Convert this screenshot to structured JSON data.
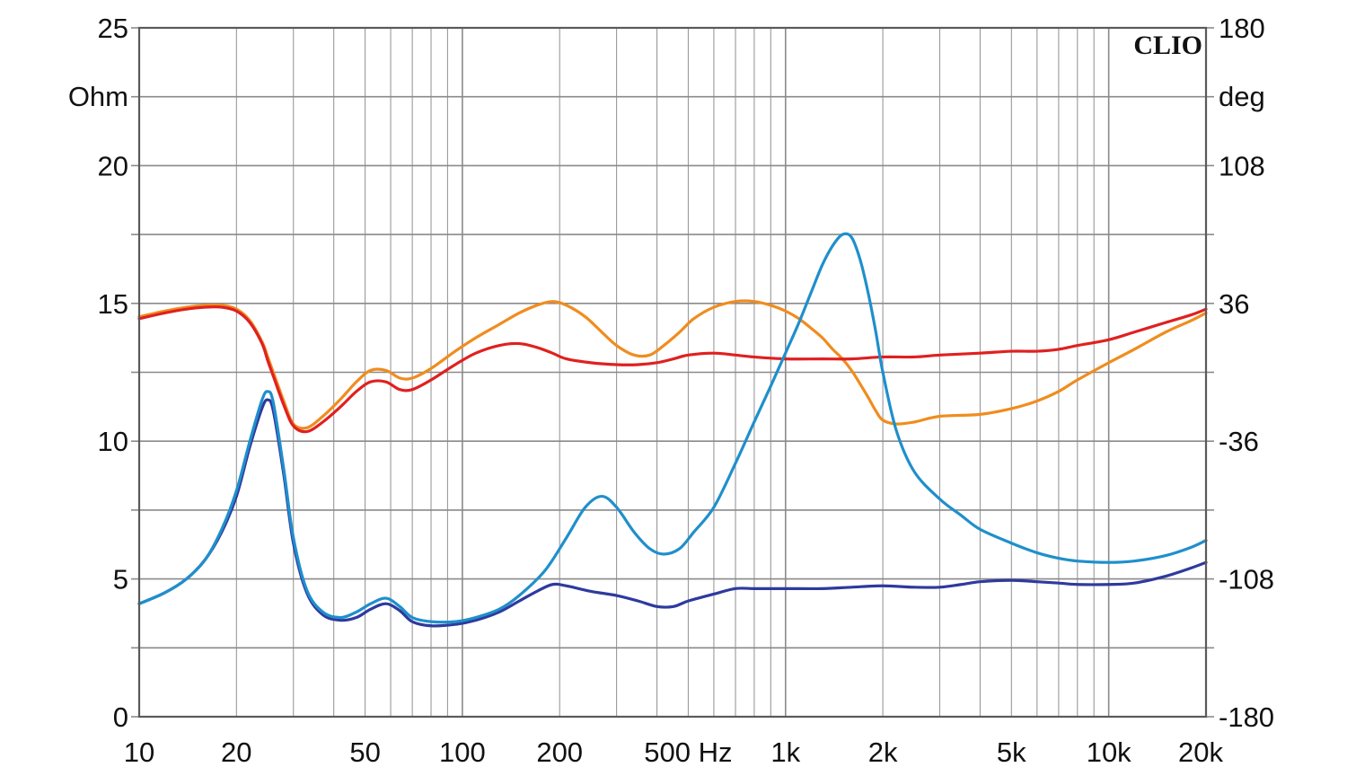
{
  "chart_data": {
    "type": "line",
    "brand": "CLIO",
    "x_scale": "log",
    "x_range": [
      10,
      20000
    ],
    "y_left": {
      "unit_label": "Ohm",
      "range": [
        0,
        25
      ],
      "ticks": [
        "0",
        "5",
        "10",
        "15",
        "20",
        "25"
      ],
      "tick_values": [
        0,
        5,
        10,
        15,
        20,
        25
      ]
    },
    "y_right": {
      "unit_label": "deg",
      "range": [
        -180,
        180
      ],
      "ticks": [
        "-180",
        "-108",
        "-36",
        "36",
        "108",
        "180"
      ],
      "tick_values": [
        -180,
        -108,
        -36,
        36,
        108,
        180
      ]
    },
    "x_ticks": [
      {
        "value": 10,
        "label": "10"
      },
      {
        "value": 20,
        "label": "20"
      },
      {
        "value": 50,
        "label": "50"
      },
      {
        "value": 100,
        "label": "100"
      },
      {
        "value": 200,
        "label": "200"
      },
      {
        "value": 500,
        "label": "500 Hz"
      },
      {
        "value": 1000,
        "label": "1k"
      },
      {
        "value": 2000,
        "label": "2k"
      },
      {
        "value": 5000,
        "label": "5k"
      },
      {
        "value": 10000,
        "label": "10k"
      },
      {
        "value": 20000,
        "label": "20k"
      }
    ],
    "grid": true,
    "series": [
      {
        "color": "#1f8fcc",
        "axis": "left",
        "points": [
          [
            10,
            4.1
          ],
          [
            12,
            4.5
          ],
          [
            14,
            5.0
          ],
          [
            16,
            5.7
          ],
          [
            18,
            6.8
          ],
          [
            20,
            8.2
          ],
          [
            22,
            10.0
          ],
          [
            24,
            11.5
          ],
          [
            25,
            11.8
          ],
          [
            26,
            11.4
          ],
          [
            28,
            9.0
          ],
          [
            30,
            6.5
          ],
          [
            33,
            4.6
          ],
          [
            37,
            3.8
          ],
          [
            42,
            3.6
          ],
          [
            47,
            3.8
          ],
          [
            52,
            4.1
          ],
          [
            58,
            4.3
          ],
          [
            64,
            4.0
          ],
          [
            70,
            3.6
          ],
          [
            80,
            3.45
          ],
          [
            95,
            3.45
          ],
          [
            110,
            3.6
          ],
          [
            130,
            3.9
          ],
          [
            150,
            4.4
          ],
          [
            180,
            5.3
          ],
          [
            210,
            6.5
          ],
          [
            240,
            7.6
          ],
          [
            270,
            8.0
          ],
          [
            300,
            7.6
          ],
          [
            340,
            6.7
          ],
          [
            380,
            6.1
          ],
          [
            420,
            5.9
          ],
          [
            470,
            6.1
          ],
          [
            520,
            6.7
          ],
          [
            600,
            7.6
          ],
          [
            700,
            9.2
          ],
          [
            800,
            10.7
          ],
          [
            900,
            12.0
          ],
          [
            1000,
            13.2
          ],
          [
            1100,
            14.3
          ],
          [
            1200,
            15.4
          ],
          [
            1300,
            16.4
          ],
          [
            1400,
            17.1
          ],
          [
            1500,
            17.5
          ],
          [
            1600,
            17.4
          ],
          [
            1700,
            16.6
          ],
          [
            1800,
            15.4
          ],
          [
            1900,
            14.0
          ],
          [
            2000,
            12.5
          ],
          [
            2200,
            10.4
          ],
          [
            2500,
            8.9
          ],
          [
            3000,
            7.9
          ],
          [
            3500,
            7.3
          ],
          [
            4000,
            6.8
          ],
          [
            5000,
            6.3
          ],
          [
            6000,
            5.95
          ],
          [
            7000,
            5.75
          ],
          [
            8000,
            5.65
          ],
          [
            10000,
            5.6
          ],
          [
            12000,
            5.65
          ],
          [
            15000,
            5.85
          ],
          [
            18000,
            6.15
          ],
          [
            20000,
            6.4
          ]
        ]
      },
      {
        "color": "#2e3a9e",
        "axis": "left",
        "points": [
          [
            10,
            4.1
          ],
          [
            12,
            4.5
          ],
          [
            14,
            5.0
          ],
          [
            16,
            5.7
          ],
          [
            18,
            6.7
          ],
          [
            20,
            8.0
          ],
          [
            22,
            9.8
          ],
          [
            24,
            11.2
          ],
          [
            25,
            11.5
          ],
          [
            26,
            11.1
          ],
          [
            28,
            8.8
          ],
          [
            30,
            6.3
          ],
          [
            33,
            4.5
          ],
          [
            37,
            3.7
          ],
          [
            42,
            3.5
          ],
          [
            47,
            3.6
          ],
          [
            52,
            3.9
          ],
          [
            58,
            4.1
          ],
          [
            64,
            3.85
          ],
          [
            70,
            3.45
          ],
          [
            80,
            3.3
          ],
          [
            95,
            3.35
          ],
          [
            110,
            3.5
          ],
          [
            130,
            3.8
          ],
          [
            150,
            4.2
          ],
          [
            170,
            4.55
          ],
          [
            190,
            4.8
          ],
          [
            210,
            4.75
          ],
          [
            250,
            4.55
          ],
          [
            300,
            4.4
          ],
          [
            350,
            4.2
          ],
          [
            400,
            4.0
          ],
          [
            450,
            4.0
          ],
          [
            500,
            4.2
          ],
          [
            600,
            4.45
          ],
          [
            700,
            4.65
          ],
          [
            800,
            4.65
          ],
          [
            1000,
            4.65
          ],
          [
            1300,
            4.65
          ],
          [
            1600,
            4.7
          ],
          [
            2000,
            4.75
          ],
          [
            2500,
            4.7
          ],
          [
            3000,
            4.7
          ],
          [
            3500,
            4.8
          ],
          [
            4000,
            4.9
          ],
          [
            5000,
            4.95
          ],
          [
            6000,
            4.9
          ],
          [
            7000,
            4.85
          ],
          [
            8000,
            4.8
          ],
          [
            10000,
            4.8
          ],
          [
            12000,
            4.85
          ],
          [
            15000,
            5.1
          ],
          [
            18000,
            5.4
          ],
          [
            20000,
            5.6
          ]
        ]
      },
      {
        "color": "#f08c1e",
        "axis": "right",
        "points": [
          [
            10,
            29
          ],
          [
            12,
            32
          ],
          [
            14,
            34
          ],
          [
            16,
            35
          ],
          [
            18,
            35
          ],
          [
            20,
            33
          ],
          [
            22,
            27
          ],
          [
            24,
            16
          ],
          [
            25,
            8
          ],
          [
            26,
            0
          ],
          [
            28,
            -15
          ],
          [
            30,
            -27
          ],
          [
            33,
            -29
          ],
          [
            37,
            -23
          ],
          [
            42,
            -14
          ],
          [
            47,
            -5
          ],
          [
            52,
            1
          ],
          [
            58,
            1
          ],
          [
            64,
            -3
          ],
          [
            70,
            -3
          ],
          [
            80,
            2
          ],
          [
            95,
            11
          ],
          [
            110,
            18
          ],
          [
            130,
            25
          ],
          [
            150,
            31
          ],
          [
            170,
            35
          ],
          [
            190,
            37
          ],
          [
            210,
            35
          ],
          [
            240,
            29
          ],
          [
            270,
            21
          ],
          [
            300,
            14
          ],
          [
            340,
            9
          ],
          [
            380,
            9
          ],
          [
            420,
            14
          ],
          [
            470,
            21
          ],
          [
            520,
            28
          ],
          [
            600,
            34
          ],
          [
            700,
            37
          ],
          [
            800,
            37
          ],
          [
            900,
            35
          ],
          [
            1000,
            32
          ],
          [
            1100,
            28
          ],
          [
            1200,
            23
          ],
          [
            1300,
            18
          ],
          [
            1400,
            12
          ],
          [
            1500,
            7
          ],
          [
            1600,
            1
          ],
          [
            1700,
            -6
          ],
          [
            1800,
            -13
          ],
          [
            1900,
            -20
          ],
          [
            2000,
            -25
          ],
          [
            2200,
            -27
          ],
          [
            2500,
            -26
          ],
          [
            3000,
            -23
          ],
          [
            4000,
            -22
          ],
          [
            5000,
            -19
          ],
          [
            6000,
            -15
          ],
          [
            7000,
            -10
          ],
          [
            8000,
            -4
          ],
          [
            10000,
            5
          ],
          [
            12000,
            12
          ],
          [
            15000,
            21
          ],
          [
            18000,
            27
          ],
          [
            20000,
            31
          ]
        ]
      },
      {
        "color": "#e02020",
        "axis": "right",
        "points": [
          [
            10,
            28
          ],
          [
            12,
            31
          ],
          [
            14,
            33
          ],
          [
            16,
            34
          ],
          [
            18,
            34
          ],
          [
            20,
            32
          ],
          [
            22,
            26
          ],
          [
            24,
            15
          ],
          [
            25,
            6
          ],
          [
            26,
            -2
          ],
          [
            28,
            -17
          ],
          [
            30,
            -28
          ],
          [
            33,
            -31
          ],
          [
            37,
            -26
          ],
          [
            42,
            -18
          ],
          [
            47,
            -10
          ],
          [
            52,
            -5
          ],
          [
            58,
            -5
          ],
          [
            64,
            -9
          ],
          [
            70,
            -9
          ],
          [
            80,
            -4
          ],
          [
            95,
            4
          ],
          [
            110,
            10
          ],
          [
            130,
            14
          ],
          [
            150,
            15
          ],
          [
            170,
            13
          ],
          [
            190,
            10
          ],
          [
            210,
            7
          ],
          [
            250,
            5
          ],
          [
            300,
            4
          ],
          [
            350,
            4
          ],
          [
            400,
            5
          ],
          [
            450,
            7
          ],
          [
            500,
            9
          ],
          [
            600,
            10
          ],
          [
            700,
            9
          ],
          [
            800,
            8
          ],
          [
            1000,
            7
          ],
          [
            1300,
            7
          ],
          [
            1600,
            7
          ],
          [
            2000,
            8
          ],
          [
            2500,
            8
          ],
          [
            3000,
            9
          ],
          [
            4000,
            10
          ],
          [
            5000,
            11
          ],
          [
            6000,
            11
          ],
          [
            7000,
            12
          ],
          [
            8000,
            14
          ],
          [
            10000,
            17
          ],
          [
            12000,
            21
          ],
          [
            15000,
            26
          ],
          [
            18000,
            30
          ],
          [
            20000,
            33
          ]
        ]
      }
    ]
  }
}
